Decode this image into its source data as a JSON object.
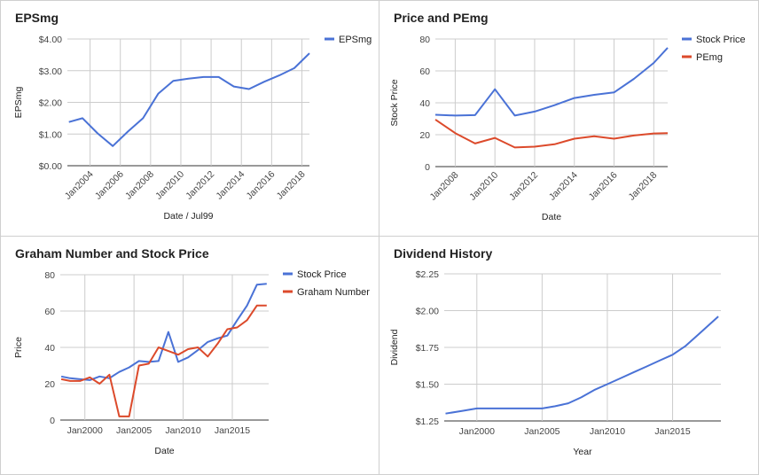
{
  "chart_data": [
    {
      "type": "line",
      "title": "EPSmg",
      "xlabel": "Date / Jul99",
      "ylabel": "EPSmg",
      "grid": true,
      "legend_position": "right",
      "xlim": [
        2002.5,
        2018.5
      ],
      "ylim": [
        0,
        4
      ],
      "yticks": [
        0,
        1,
        2,
        3,
        4
      ],
      "ytick_labels": [
        "$0.00",
        "$1.00",
        "$2.00",
        "$3.00",
        "$4.00"
      ],
      "xticks": [
        2004,
        2006,
        2008,
        2010,
        2012,
        2014,
        2016,
        2018
      ],
      "xtick_labels": [
        "Jan2004",
        "Jan2006",
        "Jan2008",
        "Jan2010",
        "Jan2012",
        "Jan2014",
        "Jan2016",
        "Jan2018"
      ],
      "rotate_xticks": true,
      "series": [
        {
          "name": "EPSmg",
          "color": "#4a72d6",
          "x": [
            2002.6,
            2003.5,
            2004.5,
            2005.5,
            2006.5,
            2007.5,
            2008.5,
            2009.5,
            2010.5,
            2011.5,
            2012.5,
            2013.5,
            2014.5,
            2015.5,
            2016.5,
            2017.5,
            2018.5
          ],
          "y": [
            1.38,
            1.5,
            1.02,
            0.62,
            1.08,
            1.5,
            2.27,
            2.68,
            2.75,
            2.8,
            2.8,
            2.5,
            2.42,
            2.65,
            2.85,
            3.08,
            3.55
          ]
        }
      ]
    },
    {
      "type": "line",
      "title": "Price and PEmg",
      "xlabel": "Date",
      "ylabel": "Stock Price",
      "grid": true,
      "legend_position": "right",
      "xlim": [
        2007,
        2018.7
      ],
      "ylim": [
        0,
        80
      ],
      "yticks": [
        0,
        20,
        40,
        60,
        80
      ],
      "ytick_labels": [
        "0",
        "20",
        "40",
        "60",
        "80"
      ],
      "xticks": [
        2008,
        2010,
        2012,
        2014,
        2016,
        2018
      ],
      "xtick_labels": [
        "Jan2008",
        "Jan2010",
        "Jan2012",
        "Jan2014",
        "Jan2016",
        "Jan2018"
      ],
      "rotate_xticks": true,
      "series": [
        {
          "name": "Stock Price",
          "color": "#4a72d6",
          "x": [
            2007,
            2008,
            2009,
            2010,
            2011,
            2012,
            2013,
            2014,
            2015,
            2016,
            2017,
            2018,
            2018.7
          ],
          "y": [
            32.5,
            32,
            32.3,
            48.5,
            32,
            34.5,
            38.5,
            43,
            45,
            46.5,
            55,
            65,
            74.5
          ]
        },
        {
          "name": "PEmg",
          "color": "#dc4a2b",
          "x": [
            2007,
            2008,
            2009,
            2010,
            2011,
            2012,
            2013,
            2014,
            2015,
            2016,
            2017,
            2018,
            2018.7
          ],
          "y": [
            29.5,
            21,
            14.5,
            18,
            12,
            12.5,
            14,
            17.5,
            19,
            17.5,
            19.5,
            20.8,
            21
          ]
        }
      ]
    },
    {
      "type": "line",
      "title": "Graham Number and Stock Price",
      "xlabel": "Date",
      "ylabel": "Price",
      "grid": true,
      "legend_position": "right",
      "xlim": [
        1997.5,
        2018.7
      ],
      "ylim": [
        0,
        80
      ],
      "yticks": [
        0,
        20,
        40,
        60,
        80
      ],
      "ytick_labels": [
        "0",
        "20",
        "40",
        "60",
        "80"
      ],
      "xticks": [
        2000,
        2005,
        2010,
        2015
      ],
      "xtick_labels": [
        "Jan2000",
        "Jan2005",
        "Jan2010",
        "Jan2015"
      ],
      "rotate_xticks": false,
      "series": [
        {
          "name": "Stock Price",
          "color": "#4a72d6",
          "x": [
            1997.6,
            1998.5,
            1999.5,
            2000.5,
            2001.5,
            2002.5,
            2003.5,
            2004.5,
            2005.5,
            2006.5,
            2007.5,
            2008.5,
            2009.5,
            2010.5,
            2011.5,
            2012.5,
            2013.5,
            2014.5,
            2015.5,
            2016.5,
            2017.5,
            2018.5
          ],
          "y": [
            24,
            23,
            22.5,
            22,
            24,
            23,
            26.5,
            29,
            32.5,
            32,
            32.5,
            48.5,
            32,
            34.5,
            38.5,
            43,
            45,
            46.5,
            55,
            63,
            74.5,
            75
          ]
        },
        {
          "name": "Graham Number",
          "color": "#dc4a2b",
          "x": [
            1997.6,
            1998.5,
            1999.5,
            2000.5,
            2001.5,
            2002.5,
            2003.5,
            2004.5,
            2005.5,
            2006.5,
            2007.5,
            2008.5,
            2009.5,
            2010.5,
            2011.5,
            2012.5,
            2013.5,
            2014.5,
            2015.5,
            2016.5,
            2017.5,
            2018.5
          ],
          "y": [
            22.5,
            21.5,
            21.5,
            23.5,
            20,
            25,
            2,
            2,
            30,
            31,
            40,
            38,
            36,
            39,
            40,
            35,
            42,
            50,
            51,
            55,
            63,
            63
          ]
        }
      ]
    },
    {
      "type": "line",
      "title": "Dividend History",
      "xlabel": "Year",
      "ylabel": "Dividend",
      "grid": true,
      "legend_position": "none",
      "xlim": [
        1997.5,
        2018.7
      ],
      "ylim": [
        1.25,
        2.25
      ],
      "yticks": [
        1.25,
        1.5,
        1.75,
        2,
        2.25
      ],
      "ytick_labels": [
        "$1.25",
        "$1.50",
        "$1.75",
        "$2.00",
        "$2.25"
      ],
      "xticks": [
        2000,
        2005,
        2010,
        2015
      ],
      "xtick_labels": [
        "Jan2000",
        "Jan2005",
        "Jan2010",
        "Jan2015"
      ],
      "rotate_xticks": false,
      "series": [
        {
          "name": "",
          "color": "#4a72d6",
          "x": [
            1997.6,
            1999,
            2000,
            2001,
            2002,
            2003,
            2004,
            2005,
            2006,
            2007,
            2008,
            2009,
            2010,
            2011,
            2012,
            2013,
            2014,
            2015,
            2016,
            2017,
            2018.5
          ],
          "y": [
            1.3,
            1.32,
            1.335,
            1.335,
            1.335,
            1.335,
            1.335,
            1.335,
            1.35,
            1.37,
            1.41,
            1.46,
            1.5,
            1.54,
            1.58,
            1.62,
            1.66,
            1.7,
            1.76,
            1.84,
            1.96
          ]
        }
      ]
    }
  ]
}
